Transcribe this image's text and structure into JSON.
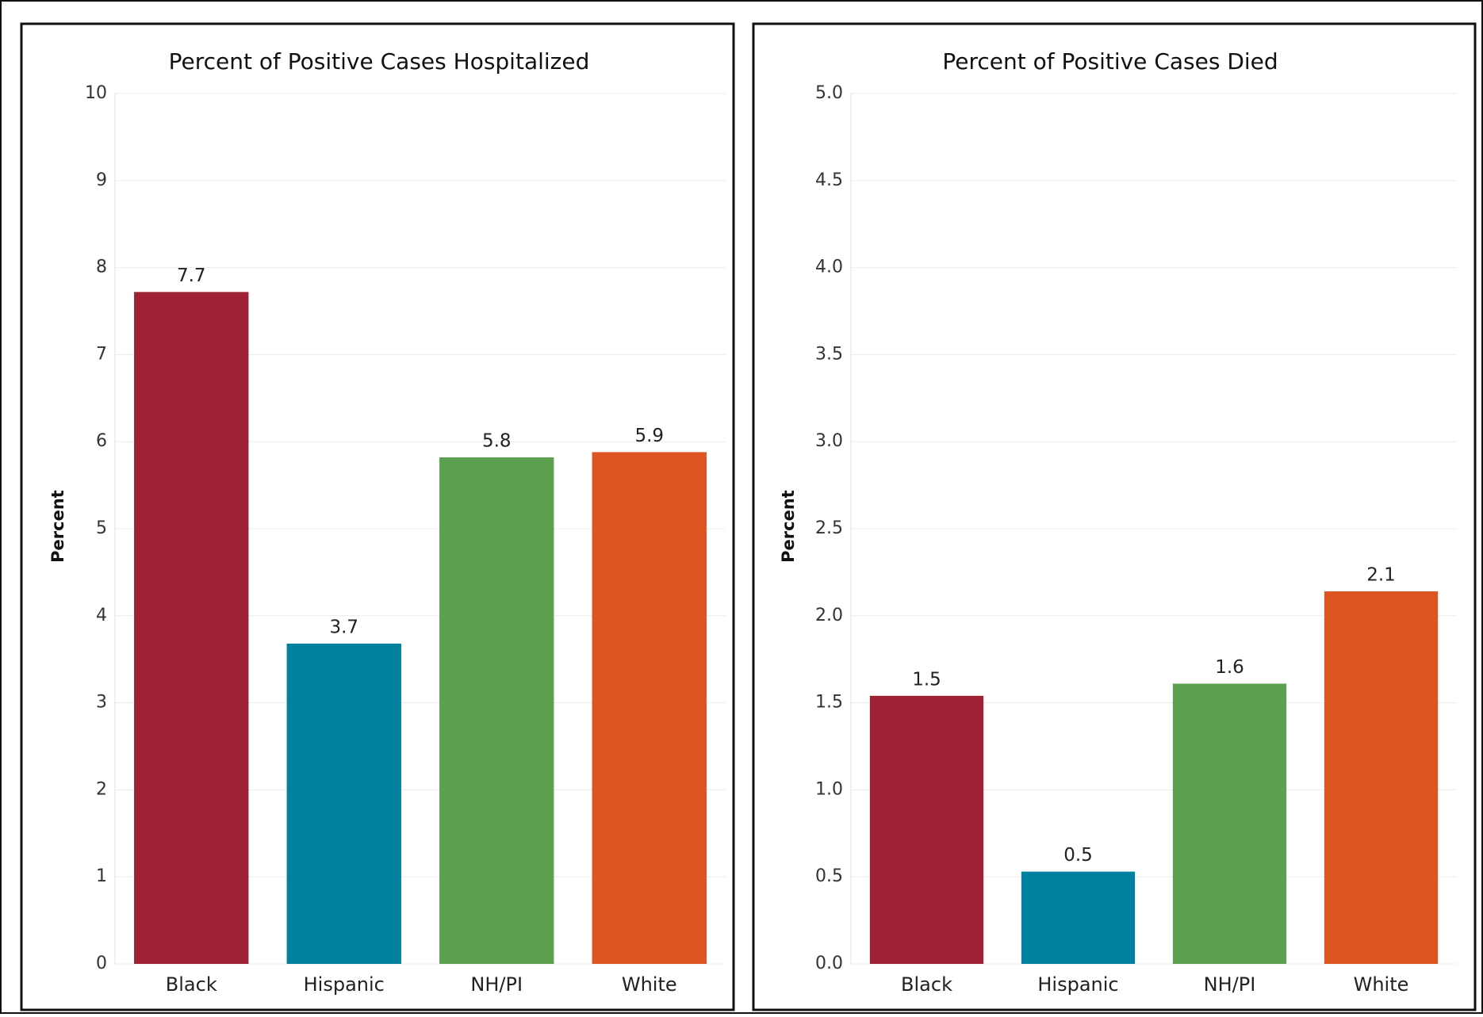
{
  "chart_data": [
    {
      "type": "bar",
      "title": "Percent of Positive Cases Hospitalized",
      "y_label": "Percent",
      "categories": [
        "Black",
        "Hispanic",
        "NH/PI",
        "White"
      ],
      "values": [
        7.72,
        3.68,
        5.82,
        5.88
      ],
      "value_labels": [
        "7.7",
        "3.7",
        "5.8",
        "5.9"
      ],
      "colors": [
        "#9e2135",
        "#0081a0",
        "#5ba150",
        "#dc5420"
      ],
      "ylim": [
        0,
        10
      ],
      "yticks": [
        0,
        1,
        2,
        3,
        4,
        5,
        6,
        7,
        8,
        9,
        10
      ],
      "grid": true
    },
    {
      "type": "bar",
      "title": "Percent of Positive Cases Died",
      "y_label": "Percent",
      "categories": [
        "Black",
        "Hispanic",
        "NH/PI",
        "White"
      ],
      "values": [
        1.54,
        0.53,
        1.61,
        2.14
      ],
      "value_labels": [
        "1.5",
        "0.5",
        "1.6",
        "2.1"
      ],
      "colors": [
        "#9e2135",
        "#0081a0",
        "#5ba150",
        "#dc5420"
      ],
      "ylim": [
        0,
        5
      ],
      "yticks": [
        {
          "value": 0,
          "label": "0.0"
        },
        0.5,
        {
          "value": 1,
          "label": "1.0"
        },
        1.5,
        {
          "value": 2,
          "label": "2.0"
        },
        2.5,
        {
          "value": 3,
          "label": "3.0"
        },
        3.5,
        {
          "value": 4,
          "label": "4.0"
        },
        4.5,
        {
          "value": 5,
          "label": "5.0"
        }
      ],
      "grid": true
    }
  ]
}
